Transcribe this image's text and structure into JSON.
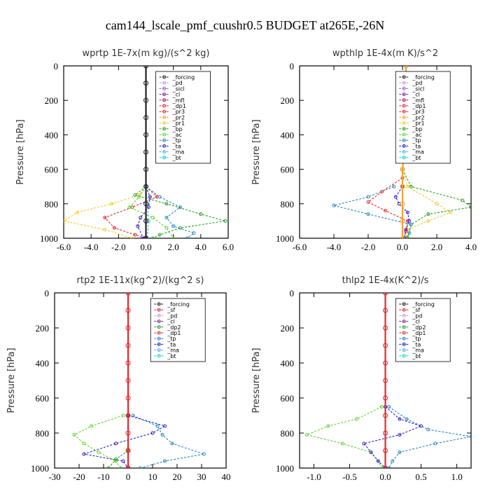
{
  "figure_title": "cam144_lscale_pmf_cuushr0.5  BUDGET at265E,-26N",
  "colors": {
    "forcing": "#222222",
    "pd": "#c79bd6",
    "sicl": "#8a63c8",
    "cl": "#7a1fa0",
    "mfl": "#a0196b",
    "dp1": "#e8262a",
    "pr3": "#e8262a",
    "pr2": "#f2a23a",
    "pr1": "#f2cc2a",
    "bp": "#27a327",
    "ac": "#5fd62c",
    "tp": "#2a86c4",
    "ta": "#2a1fc9",
    "ma": "#4bb3e0",
    "bt": "#10d4d4",
    "sf": "#e8262a",
    "dp2": "#27a327"
  },
  "chart_data": [
    {
      "type": "line",
      "panel": "top-left",
      "title": "wprtp  1E-7x(m kg)/(s^2 kg)",
      "ylabel": "Pressure [hPa]",
      "xlim": [
        -6,
        6
      ],
      "ylim": [
        1000,
        0
      ],
      "xticks": [
        "-6.0",
        "-4.0",
        "-2.0",
        "0.0",
        "2.0",
        "4.0",
        "6.0"
      ],
      "xtick_values": [
        -6,
        -4,
        -2,
        0,
        2,
        4,
        6
      ],
      "yticks": [
        "0",
        "200",
        "400",
        "600",
        "800",
        "1000"
      ],
      "ytick_values": [
        0,
        200,
        400,
        600,
        800,
        1000
      ],
      "legend": [
        "_forcing",
        "_pd",
        "_sicl",
        "_cl",
        "_mfl",
        "_dp1",
        "_pr3",
        "_pr2",
        "_pr1",
        "_bp",
        "_ac",
        "_tp",
        "_ta",
        "_ma",
        "_bt"
      ],
      "series": [
        {
          "name": "_pr1",
          "color": "pr1",
          "p": [
            700,
            750,
            800,
            850,
            900,
            950,
            1000
          ],
          "x": [
            0,
            -0.5,
            -2.5,
            -5.0,
            -6.0,
            -3.0,
            -1.0
          ]
        },
        {
          "name": "_pr3",
          "color": "pr3",
          "p": [
            700,
            760,
            820,
            880,
            940,
            980,
            1000
          ],
          "x": [
            0,
            0.8,
            -1.0,
            -3.0,
            -2.3,
            -0.8,
            0
          ]
        },
        {
          "name": "_bp",
          "color": "bp",
          "p": [
            700,
            750,
            800,
            860,
            900,
            940,
            980,
            1000
          ],
          "x": [
            0,
            -0.8,
            1.5,
            4.0,
            5.8,
            2.5,
            1.0,
            0.5
          ]
        },
        {
          "name": "_ac",
          "color": "ac",
          "p": [
            700,
            760,
            820,
            880,
            940,
            1000
          ],
          "x": [
            0,
            -0.5,
            -1.2,
            0.5,
            1.5,
            2.0
          ]
        },
        {
          "name": "_tp",
          "color": "tp",
          "p": [
            700,
            760,
            820,
            880,
            930,
            970,
            1000
          ],
          "x": [
            0,
            1.0,
            2.5,
            1.5,
            2.0,
            3.5,
            3.0
          ]
        },
        {
          "name": "_ta",
          "color": "ta",
          "p": [
            700,
            760,
            820,
            880,
            930,
            1000
          ],
          "x": [
            0,
            0.3,
            0.2,
            -0.4,
            -0.6,
            -0.2
          ]
        },
        {
          "name": "_ma",
          "color": "ma",
          "p": [
            700,
            800,
            900,
            1000
          ],
          "x": [
            0,
            0.1,
            0.2,
            0.1
          ]
        },
        {
          "name": "_forcing",
          "color": "forcing",
          "p": [
            0,
            100,
            200,
            300,
            400,
            500,
            600,
            700,
            800,
            900,
            1000
          ],
          "x": [
            0,
            0,
            0,
            0,
            0,
            0,
            0,
            0,
            0,
            0,
            0
          ]
        }
      ]
    },
    {
      "type": "line",
      "panel": "top-right",
      "title": "wpthlp  1E-4x(m K)/s^2",
      "ylabel": "Pressure [hPa]",
      "xlim": [
        -6,
        4
      ],
      "ylim": [
        1000,
        0
      ],
      "xticks": [
        "-6.0",
        "-4.0",
        "-2.0",
        "0.0",
        "2.0",
        "4.0"
      ],
      "xtick_values": [
        -6,
        -4,
        -2,
        0,
        2,
        4
      ],
      "yticks": [
        "0",
        "200",
        "400",
        "600",
        "800",
        "1000"
      ],
      "ytick_values": [
        0,
        200,
        400,
        600,
        800,
        1000
      ],
      "legend": [
        "_forcing",
        "_pd",
        "_sicl",
        "_cl",
        "_mfl",
        "_dp1",
        "_pr3",
        "_pr2",
        "_pr1",
        "_bp",
        "_ac",
        "_tp",
        "_ta",
        "_ma",
        "_bt"
      ],
      "series": [
        {
          "name": "_bp",
          "color": "bp",
          "p": [
            600,
            700,
            780,
            820,
            860,
            920,
            1000
          ],
          "x": [
            0,
            0.5,
            3.5,
            4.0,
            1.5,
            0.5,
            0.3
          ]
        },
        {
          "name": "_pr1",
          "color": "pr1",
          "p": [
            600,
            700,
            800,
            850,
            900,
            950,
            1000
          ],
          "x": [
            0,
            0.3,
            2.0,
            2.8,
            1.5,
            0.3,
            0.2
          ]
        },
        {
          "name": "_pr3",
          "color": "pr3",
          "p": [
            650,
            730,
            790,
            840,
            900,
            960,
            1000
          ],
          "x": [
            0,
            -1.2,
            -2.0,
            -1.0,
            0.3,
            0.2,
            0.1
          ]
        },
        {
          "name": "_tp",
          "color": "tp",
          "p": [
            700,
            760,
            810,
            860,
            920,
            970,
            1000
          ],
          "x": [
            -0.5,
            -2.0,
            -4.0,
            -2.0,
            0.5,
            0.4,
            0.2
          ]
        },
        {
          "name": "_ta",
          "color": "ta",
          "p": [
            700,
            760,
            800,
            850,
            900,
            950,
            1000
          ],
          "x": [
            0,
            -0.4,
            -0.2,
            0.3,
            0.4,
            0.2,
            0.1
          ]
        },
        {
          "name": "_forcing",
          "color": "pr2",
          "p": [
            0,
            100,
            200,
            300,
            400,
            500,
            600,
            700,
            800,
            900,
            1000
          ],
          "x": [
            0.2,
            0.2,
            0.2,
            0.2,
            0.1,
            0.1,
            0,
            0,
            0,
            0,
            0
          ]
        }
      ]
    },
    {
      "type": "line",
      "panel": "bottom-left",
      "title": "rtp2  1E-11x(kg^2)/(kg^2 s)",
      "ylabel": "Pressure [hPa]",
      "xlim": [
        -30,
        40
      ],
      "ylim": [
        1000,
        0
      ],
      "xticks": [
        "-30",
        "-20",
        "-10",
        "0",
        "10",
        "20",
        "30",
        "40"
      ],
      "xtick_values": [
        -30,
        -20,
        -10,
        0,
        10,
        20,
        30,
        40
      ],
      "yticks": [
        "0",
        "200",
        "400",
        "600",
        "800",
        "1000"
      ],
      "ytick_values": [
        0,
        200,
        400,
        600,
        800,
        1000
      ],
      "legend": [
        "_forcing",
        "_sf",
        "_pd",
        "_cl",
        "_dp2",
        "_dp1",
        "_tp",
        "_ta",
        "_ma",
        "_bt"
      ],
      "series": [
        {
          "name": "_dp1",
          "color": "ac",
          "p": [
            700,
            760,
            810,
            860,
            910,
            960,
            1000
          ],
          "x": [
            -2,
            -15,
            -22,
            -18,
            -12,
            -5,
            -3
          ]
        },
        {
          "name": "_tp",
          "color": "tp",
          "p": [
            700,
            760,
            810,
            860,
            920,
            960,
            1000
          ],
          "x": [
            2,
            12,
            14,
            18,
            31,
            15,
            5
          ]
        },
        {
          "name": "_ta",
          "color": "ta",
          "p": [
            700,
            760,
            800,
            860,
            920,
            960,
            1000
          ],
          "x": [
            0,
            15,
            10,
            -5,
            -18,
            -2,
            0
          ]
        },
        {
          "name": "_dp2",
          "color": "bp",
          "p": [
            900,
            950,
            1000
          ],
          "x": [
            0,
            -5,
            -8
          ]
        },
        {
          "name": "_forcing",
          "color": "dp1",
          "p": [
            0,
            100,
            200,
            300,
            400,
            500,
            600,
            700,
            800,
            900,
            1000
          ],
          "x": [
            0,
            0,
            0,
            0,
            0,
            0,
            0,
            0,
            0,
            0,
            0
          ]
        }
      ]
    },
    {
      "type": "line",
      "panel": "bottom-right",
      "title": "thlp2  1E-4x(K^2)/s",
      "ylabel": "Pressure [hPa]",
      "xlim": [
        -1.2,
        1.2
      ],
      "ylim": [
        1000,
        0
      ],
      "xticks": [
        "-1.0",
        "-0.5",
        "0.0",
        "0.5",
        "1.0"
      ],
      "xtick_values": [
        -1.0,
        -0.5,
        0.0,
        0.5,
        1.0
      ],
      "yticks": [
        "0",
        "200",
        "400",
        "600",
        "800",
        "1000"
      ],
      "ytick_values": [
        0,
        200,
        400,
        600,
        800,
        1000
      ],
      "legend": [
        "_forcing",
        "_sf",
        "_pd",
        "_cl",
        "_dp2",
        "_dp1",
        "_tp",
        "_ta",
        "_ma",
        "_bt"
      ],
      "series": [
        {
          "name": "_dp1",
          "color": "ac",
          "p": [
            650,
            720,
            760,
            810,
            860,
            910,
            960,
            1000
          ],
          "x": [
            -0.05,
            -0.4,
            -0.8,
            -1.1,
            -0.6,
            -0.2,
            -0.1,
            -0.05
          ]
        },
        {
          "name": "_tp",
          "color": "tp",
          "p": [
            650,
            720,
            780,
            820,
            860,
            910,
            960,
            1000
          ],
          "x": [
            0.05,
            0.3,
            0.6,
            1.2,
            0.7,
            0.2,
            0.1,
            0.05
          ]
        },
        {
          "name": "_ta",
          "color": "ta",
          "p": [
            650,
            720,
            760,
            810,
            860,
            910,
            960,
            1000
          ],
          "x": [
            0,
            0.2,
            0.5,
            0.2,
            -0.3,
            -0.2,
            -0.1,
            0
          ]
        },
        {
          "name": "_forcing",
          "color": "dp1",
          "p": [
            0,
            100,
            200,
            300,
            400,
            500,
            600,
            700,
            800,
            900,
            1000
          ],
          "x": [
            0,
            0,
            0,
            0,
            0,
            0,
            0,
            0,
            0,
            0,
            0
          ]
        }
      ]
    }
  ]
}
